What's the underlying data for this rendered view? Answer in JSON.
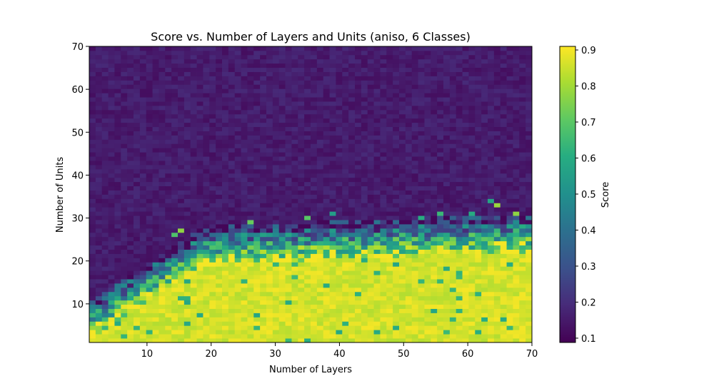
{
  "chart_data": {
    "type": "heatmap",
    "title": "Score vs. Number of Layers and Units (aniso, 6 Classes)",
    "xlabel": "Number of Layers",
    "ylabel": "Number of Units",
    "xlim": [
      1,
      70
    ],
    "ylim": [
      1,
      70
    ],
    "x_ticks": [
      10,
      20,
      30,
      40,
      50,
      60,
      70
    ],
    "y_ticks": [
      10,
      20,
      30,
      40,
      50,
      60,
      70
    ],
    "colormap": "viridis",
    "colorbar": {
      "label": "Score",
      "range": [
        0.088,
        0.91
      ],
      "ticks": [
        "0.1",
        "0.2",
        "0.3",
        "0.4",
        "0.5",
        "0.6",
        "0.7",
        "0.8",
        "0.9"
      ]
    },
    "grid": false,
    "pattern": {
      "description_values": "score ~0.82-0.91 for units below ~20 (boundary rises from ~5 units at 1 layer to ~22-28 units at 70 layers); transition band of mixed 0.35-0.8 values; score ~0.12-0.18 above ~30 units",
      "low_score": 0.14,
      "high_score": 0.87
    }
  }
}
